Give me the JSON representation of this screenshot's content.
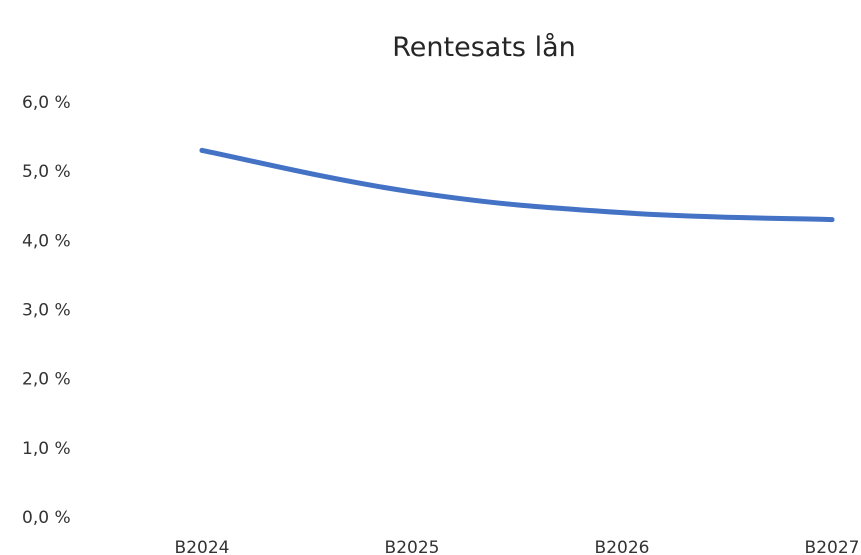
{
  "chart_data": {
    "type": "line",
    "title": "Rentesats lån",
    "xlabel": "",
    "ylabel": "",
    "categories": [
      "B2024",
      "B2025",
      "B2026",
      "B2027"
    ],
    "series": [
      {
        "values": [
          5.3,
          4.7,
          4.4,
          4.3
        ],
        "color": "#4472c4"
      }
    ],
    "ylim": [
      0,
      6
    ],
    "yticks": [
      0,
      1,
      2,
      3,
      4,
      5,
      6
    ],
    "ytick_labels": [
      "0,0 %",
      "1,0 %",
      "2,0 %",
      "3,0 %",
      "4,0 %",
      "5,0 %",
      "6,0 %"
    ],
    "grid": false,
    "legend": "none"
  }
}
